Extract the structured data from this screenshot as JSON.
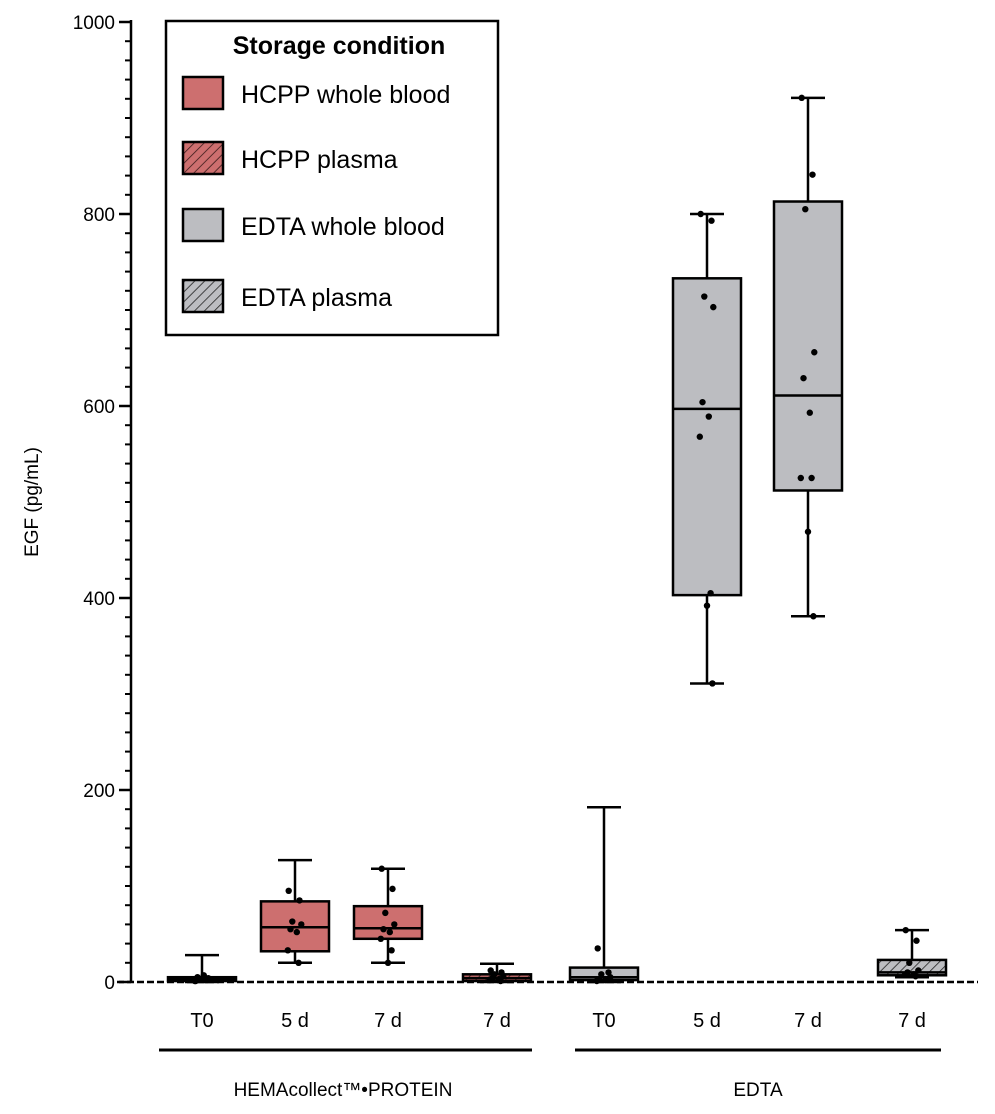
{
  "chart_data": {
    "type": "boxplot",
    "ylabel": "EGF (pg/mL)",
    "ylim": [
      0,
      1000
    ],
    "yticks": [
      "0",
      "200",
      "400",
      "600",
      "800",
      "1000"
    ],
    "legend": {
      "title": "Storage condition",
      "placement": "top-left",
      "entries": [
        {
          "label": "HCPP whole blood",
          "color": "#cd6f6f",
          "hatch": false
        },
        {
          "label": "HCPP plasma",
          "color": "#cd6f6f",
          "hatch": true
        },
        {
          "label": "EDTA whole blood",
          "color": "#bcbdc1",
          "hatch": false
        },
        {
          "label": "EDTA plasma",
          "color": "#bcbdc1",
          "hatch": true
        }
      ]
    },
    "groups": [
      {
        "label": "HEMAcollect™•PROTEIN"
      },
      {
        "label": "EDTA"
      }
    ],
    "boxes": [
      {
        "category": "T0",
        "group": 0,
        "style": 0,
        "min": 0,
        "q1": 1,
        "median": 3,
        "q3": 5,
        "max": 28,
        "points": [
          1,
          2,
          3,
          4,
          5,
          7,
          1,
          2,
          3
        ]
      },
      {
        "category": "5 d",
        "group": 0,
        "style": 0,
        "min": 20,
        "q1": 32,
        "median": 57,
        "q3": 84,
        "max": 127,
        "points": [
          95,
          85,
          63,
          60,
          55,
          52,
          33,
          20
        ]
      },
      {
        "category": "7 d",
        "group": 0,
        "style": 0,
        "min": 20,
        "q1": 45,
        "median": 56,
        "q3": 79,
        "max": 118,
        "points": [
          118,
          97,
          72,
          60,
          55,
          52,
          45,
          33,
          20
        ]
      },
      {
        "category": "7 d",
        "group": 0,
        "style": 1,
        "min": 0,
        "q1": 1,
        "median": 4,
        "q3": 8,
        "max": 19,
        "points": [
          12,
          10,
          8,
          6,
          4,
          3,
          2,
          1
        ]
      },
      {
        "category": "T0",
        "group": 1,
        "style": 2,
        "min": 0,
        "q1": 2,
        "median": 5,
        "q3": 15,
        "max": 182,
        "points": [
          35,
          10,
          8,
          5,
          3,
          2,
          1
        ]
      },
      {
        "category": "5 d",
        "group": 1,
        "style": 2,
        "min": 311,
        "q1": 403,
        "median": 597,
        "q3": 733,
        "max": 800,
        "points": [
          800,
          793,
          714,
          703,
          604,
          589,
          568,
          405,
          392,
          311
        ]
      },
      {
        "category": "7 d",
        "group": 1,
        "style": 2,
        "min": 381,
        "q1": 512,
        "median": 611,
        "q3": 813,
        "max": 921,
        "points": [
          921,
          841,
          805,
          656,
          629,
          593,
          525,
          525,
          469,
          381
        ]
      },
      {
        "category": "7 d",
        "group": 1,
        "style": 3,
        "min": 5,
        "q1": 7,
        "median": 10,
        "q3": 23,
        "max": 54,
        "points": [
          54,
          43,
          20,
          12,
          10,
          8,
          7,
          6
        ]
      }
    ]
  }
}
